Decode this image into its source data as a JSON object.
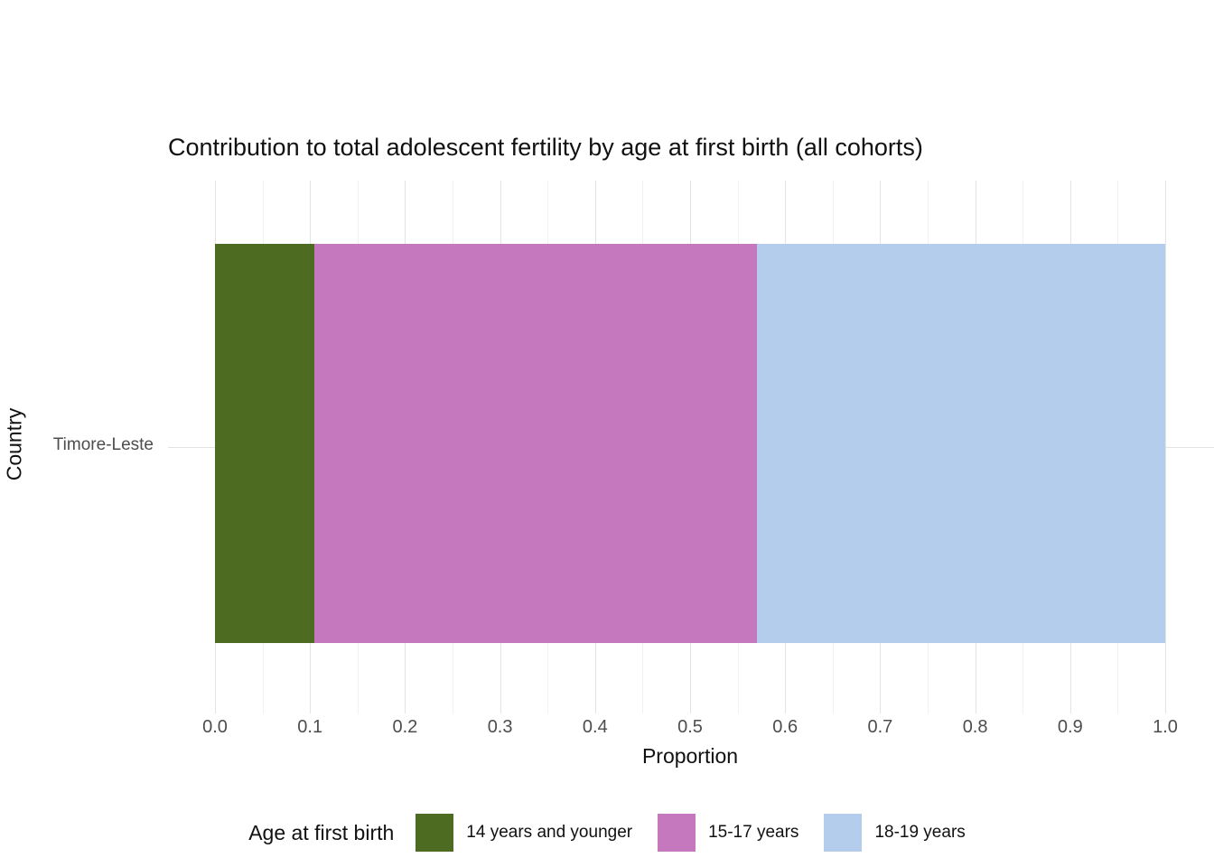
{
  "chart_data": {
    "type": "bar",
    "orientation": "horizontal",
    "stacked": true,
    "title": "Contribution to total adolescent fertility by age at first birth (all cohorts)",
    "xlabel": "Proportion",
    "ylabel": "Country",
    "categories": [
      "Timore-Leste"
    ],
    "series": [
      {
        "name": "14 years and younger",
        "values": [
          0.105
        ],
        "color": "#4d6b21"
      },
      {
        "name": "15-17 years",
        "values": [
          0.465
        ],
        "color": "#c678be"
      },
      {
        "name": "18-19 years",
        "values": [
          0.43
        ],
        "color": "#b5cdec"
      }
    ],
    "xlim": [
      0,
      1
    ],
    "x_ticks": [
      "0.0",
      "0.1",
      "0.2",
      "0.3",
      "0.4",
      "0.5",
      "0.6",
      "0.7",
      "0.8",
      "0.9",
      "1.0"
    ],
    "grid": true,
    "gridline_major_color": "#e3e3e3",
    "gridline_minor_color": "#f1f1f1",
    "legend_title": "Age at first birth",
    "legend_position": "bottom"
  }
}
